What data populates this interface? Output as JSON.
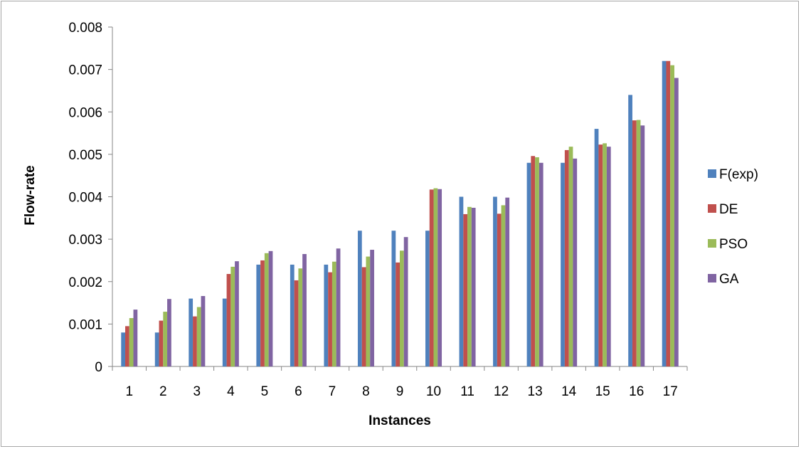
{
  "chart_data": {
    "type": "bar",
    "title": "",
    "xlabel": "Instances",
    "ylabel": "Flow-rate",
    "ylim": [
      0,
      0.008
    ],
    "yticks": [
      "0",
      "0.001",
      "0.002",
      "0.003",
      "0.004",
      "0.005",
      "0.006",
      "0.007",
      "0.008"
    ],
    "grid": false,
    "legend_position": "right",
    "categories": [
      "1",
      "2",
      "3",
      "4",
      "5",
      "6",
      "7",
      "8",
      "9",
      "10",
      "11",
      "12",
      "13",
      "14",
      "15",
      "16",
      "17"
    ],
    "series": [
      {
        "name": "F(exp)",
        "color": "#4f81bd",
        "values": [
          0.0008,
          0.0008,
          0.0016,
          0.0016,
          0.0024,
          0.0024,
          0.0024,
          0.0032,
          0.0032,
          0.0032,
          0.004,
          0.004,
          0.0048,
          0.0048,
          0.0056,
          0.0064,
          0.0072
        ]
      },
      {
        "name": "DE",
        "color": "#c0504d",
        "values": [
          0.00095,
          0.00108,
          0.00118,
          0.00218,
          0.0025,
          0.00203,
          0.00222,
          0.00234,
          0.00245,
          0.00417,
          0.00359,
          0.0036,
          0.00496,
          0.0051,
          0.00523,
          0.0058,
          0.0072
        ]
      },
      {
        "name": "PSO",
        "color": "#9bbb59",
        "values": [
          0.00114,
          0.00129,
          0.0014,
          0.00235,
          0.00267,
          0.00231,
          0.00247,
          0.00259,
          0.00273,
          0.0042,
          0.00376,
          0.0038,
          0.00493,
          0.00518,
          0.00526,
          0.00581,
          0.0071
        ]
      },
      {
        "name": "GA",
        "color": "#8064a2",
        "values": [
          0.00134,
          0.00159,
          0.00166,
          0.00248,
          0.00272,
          0.00265,
          0.00278,
          0.00275,
          0.00305,
          0.00418,
          0.00374,
          0.00398,
          0.0048,
          0.0049,
          0.00518,
          0.00568,
          0.0068
        ]
      }
    ]
  }
}
